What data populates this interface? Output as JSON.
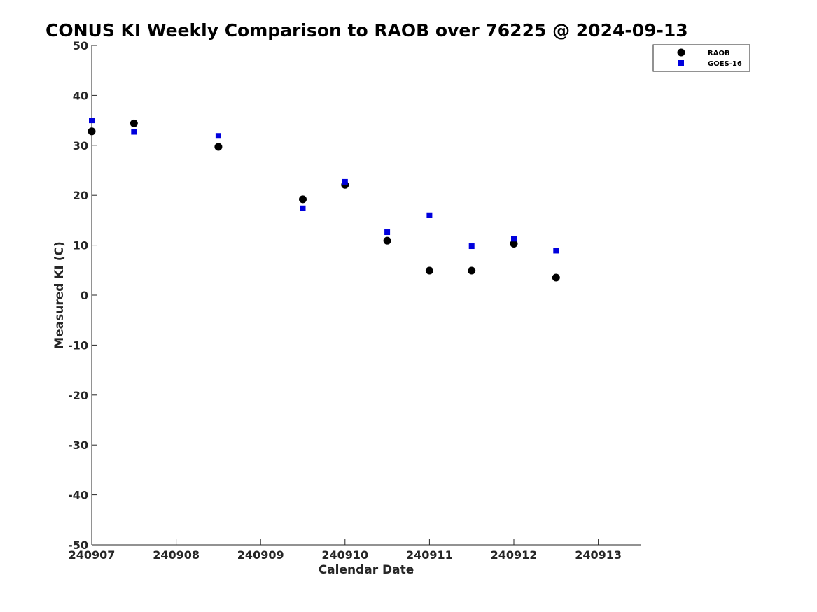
{
  "chart_data": {
    "type": "scatter",
    "title": "CONUS KI Weekly Comparison to RAOB over 76225 @ 2024-09-13",
    "xlabel": "Calendar Date",
    "ylabel": "Measured KI (C)",
    "xlim": [
      0,
      6.5
    ],
    "ylim": [
      -50,
      50
    ],
    "x_ticks": [
      0,
      1,
      2,
      3,
      4,
      5,
      6
    ],
    "x_tick_labels": [
      "240907",
      "240908",
      "240909",
      "240910",
      "240911",
      "240912",
      "240913"
    ],
    "y_ticks": [
      -50,
      -40,
      -30,
      -20,
      -10,
      0,
      10,
      20,
      30,
      40,
      50
    ],
    "y_tick_labels": [
      "-50",
      "-40",
      "-30",
      "-20",
      "-10",
      "0",
      "10",
      "20",
      "30",
      "40",
      "50"
    ],
    "grid": false,
    "legend_position": "top-right",
    "series": [
      {
        "name": "RAOB",
        "marker": "circle",
        "color": "#000000",
        "x": [
          0,
          0.5,
          1.5,
          2.5,
          3,
          3.5,
          4,
          4.5,
          5,
          5.5
        ],
        "y": [
          32.8,
          34.4,
          29.7,
          19.2,
          22.1,
          10.9,
          4.9,
          4.9,
          10.3,
          3.5
        ]
      },
      {
        "name": "GOES-16",
        "marker": "square",
        "color": "#0000dd",
        "x": [
          0,
          0.5,
          1.5,
          2.5,
          3,
          3.5,
          4,
          4.5,
          5,
          5.5
        ],
        "y": [
          35.0,
          32.7,
          31.9,
          17.4,
          22.7,
          12.6,
          16.0,
          9.8,
          11.3,
          8.9
        ]
      }
    ]
  }
}
